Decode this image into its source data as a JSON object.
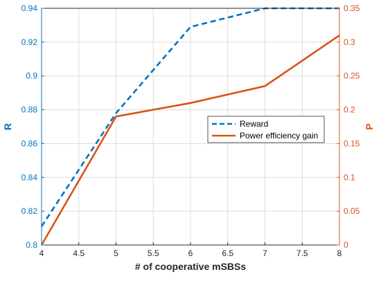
{
  "chart_data": {
    "type": "line",
    "xlabel": "# of cooperative mSBSs",
    "ylabel_left": "R",
    "ylabel_right": "P",
    "x_ticks": [
      "4",
      "4.5",
      "5",
      "5.5",
      "6",
      "6.5",
      "7",
      "7.5",
      "8"
    ],
    "y_left_ticks": [
      "0.8",
      "0.82",
      "0.84",
      "0.86",
      "0.88",
      "0.9",
      "0.92",
      "0.94"
    ],
    "y_right_ticks": [
      "0",
      "0.05",
      "0.1",
      "0.15",
      "0.2",
      "0.25",
      "0.3",
      "0.35"
    ],
    "xlim": [
      4,
      8
    ],
    "ylim_left": [
      0.8,
      0.94
    ],
    "ylim_right": [
      0,
      0.35
    ],
    "grid": true,
    "legend_position": "center-right",
    "series": [
      {
        "name": "Reward",
        "axis": "left",
        "style": "dashed",
        "color": "#0072BD",
        "x": [
          4,
          5,
          6,
          7,
          8
        ],
        "y": [
          0.811,
          0.878,
          0.929,
          0.94,
          0.94
        ]
      },
      {
        "name": "Power efficiency gain",
        "axis": "right",
        "style": "solid",
        "color": "#D95319",
        "x": [
          4,
          5,
          6,
          7,
          8
        ],
        "y": [
          0.0,
          0.19,
          0.21,
          0.235,
          0.31
        ]
      }
    ]
  }
}
